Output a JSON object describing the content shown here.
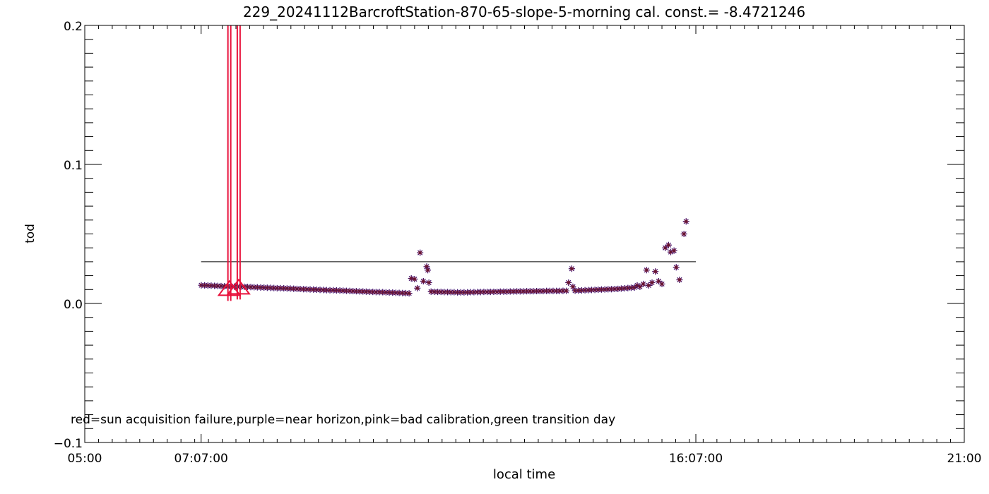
{
  "chart_data": {
    "type": "scatter",
    "title": "229_20241112BarcroftStation-870-65-slope-5-morning cal. const.= -8.4721246",
    "xlabel": "local time",
    "ylabel": "tod",
    "x_unit": "hours",
    "xlim": [
      5.0,
      21.0
    ],
    "ylim": [
      -0.1,
      0.2
    ],
    "x_ticks": [
      {
        "value": 5.0,
        "label": "05:00"
      },
      {
        "value": 7.1167,
        "label": "07:07:00"
      },
      {
        "value": 16.1167,
        "label": "16:07:00"
      },
      {
        "value": 21.0,
        "label": "21:00"
      }
    ],
    "y_ticks": [
      {
        "value": -0.1,
        "label": "-0.1"
      },
      {
        "value": 0.0,
        "label": "0.0"
      },
      {
        "value": 0.1,
        "label": "0.1"
      },
      {
        "value": 0.2,
        "label": "0.2"
      }
    ],
    "x_minor_step": 0.25,
    "y_minor_step": 0.01,
    "grid": false,
    "annotation": "red=sun acquisition failure,purple=near horizon,pink=bad calibration,green transition day",
    "threshold_line": {
      "y": 0.03,
      "x_start": 7.1167,
      "x_end": 16.1167,
      "color": "#000000"
    },
    "colors": {
      "all": "#000000",
      "purple": "#8a2be2",
      "pink": "#e0306a",
      "red": "#e8103a"
    },
    "red_failures": [
      {
        "x": 7.63,
        "y": 0.011
      },
      {
        "x": 7.8,
        "y": 0.012
      }
    ],
    "series": [
      {
        "marker": "asterisk",
        "color": "#000000",
        "points": [
          [
            7.12,
            0.0131
          ],
          [
            7.18,
            0.013
          ],
          [
            7.24,
            0.0129
          ],
          [
            7.3,
            0.0128
          ],
          [
            7.36,
            0.0127
          ],
          [
            7.42,
            0.0126
          ],
          [
            7.48,
            0.0125
          ],
          [
            7.54,
            0.0124
          ],
          [
            7.6,
            0.0123
          ],
          [
            7.66,
            0.0122
          ],
          [
            7.72,
            0.0121
          ],
          [
            7.78,
            0.0121
          ],
          [
            7.84,
            0.012
          ],
          [
            7.9,
            0.012
          ],
          [
            7.96,
            0.0119
          ],
          [
            8.02,
            0.0118
          ],
          [
            8.08,
            0.0117
          ],
          [
            8.14,
            0.0116
          ],
          [
            8.2,
            0.0115
          ],
          [
            8.26,
            0.0114
          ],
          [
            8.32,
            0.0113
          ],
          [
            8.38,
            0.0112
          ],
          [
            8.44,
            0.0111
          ],
          [
            8.5,
            0.011
          ],
          [
            8.56,
            0.011
          ],
          [
            8.62,
            0.0109
          ],
          [
            8.68,
            0.0108
          ],
          [
            8.74,
            0.0107
          ],
          [
            8.8,
            0.0106
          ],
          [
            8.86,
            0.0105
          ],
          [
            8.92,
            0.0104
          ],
          [
            8.98,
            0.0103
          ],
          [
            9.04,
            0.0102
          ],
          [
            9.1,
            0.0101
          ],
          [
            9.16,
            0.01
          ],
          [
            9.22,
            0.0099
          ],
          [
            9.28,
            0.0098
          ],
          [
            9.34,
            0.0097
          ],
          [
            9.4,
            0.0096
          ],
          [
            9.46,
            0.0095
          ],
          [
            9.52,
            0.0095
          ],
          [
            9.58,
            0.0094
          ],
          [
            9.64,
            0.0093
          ],
          [
            9.7,
            0.0092
          ],
          [
            9.76,
            0.0091
          ],
          [
            9.82,
            0.009
          ],
          [
            9.88,
            0.0089
          ],
          [
            9.94,
            0.0088
          ],
          [
            10.0,
            0.0087
          ],
          [
            10.06,
            0.0086
          ],
          [
            10.12,
            0.0085
          ],
          [
            10.18,
            0.0084
          ],
          [
            10.24,
            0.0083
          ],
          [
            10.3,
            0.0082
          ],
          [
            10.36,
            0.0082
          ],
          [
            10.42,
            0.0081
          ],
          [
            10.48,
            0.008
          ],
          [
            10.54,
            0.0079
          ],
          [
            10.6,
            0.0078
          ],
          [
            10.66,
            0.0077
          ],
          [
            10.72,
            0.0076
          ],
          [
            10.78,
            0.0075
          ],
          [
            10.84,
            0.0074
          ],
          [
            10.9,
            0.0073
          ],
          [
            10.94,
            0.018
          ],
          [
            11.0,
            0.0175
          ],
          [
            11.05,
            0.011
          ],
          [
            11.1,
            0.0365
          ],
          [
            11.16,
            0.016
          ],
          [
            11.22,
            0.0265
          ],
          [
            11.24,
            0.024
          ],
          [
            11.26,
            0.015
          ],
          [
            11.3,
            0.0085
          ],
          [
            11.36,
            0.0084
          ],
          [
            11.42,
            0.0083
          ],
          [
            11.48,
            0.0083
          ],
          [
            11.54,
            0.0082
          ],
          [
            11.6,
            0.0082
          ],
          [
            11.66,
            0.0081
          ],
          [
            11.72,
            0.0081
          ],
          [
            11.78,
            0.008
          ],
          [
            11.84,
            0.008
          ],
          [
            11.9,
            0.008
          ],
          [
            11.96,
            0.008
          ],
          [
            12.02,
            0.0081
          ],
          [
            12.08,
            0.0081
          ],
          [
            12.14,
            0.0082
          ],
          [
            12.2,
            0.0082
          ],
          [
            12.26,
            0.0083
          ],
          [
            12.32,
            0.0083
          ],
          [
            12.38,
            0.0083
          ],
          [
            12.44,
            0.0084
          ],
          [
            12.5,
            0.0084
          ],
          [
            12.56,
            0.0085
          ],
          [
            12.62,
            0.0085
          ],
          [
            12.68,
            0.0085
          ],
          [
            12.74,
            0.0086
          ],
          [
            12.8,
            0.0086
          ],
          [
            12.86,
            0.0087
          ],
          [
            12.92,
            0.0087
          ],
          [
            12.98,
            0.0087
          ],
          [
            13.04,
            0.0088
          ],
          [
            13.1,
            0.0088
          ],
          [
            13.16,
            0.0088
          ],
          [
            13.22,
            0.0089
          ],
          [
            13.28,
            0.0089
          ],
          [
            13.34,
            0.0089
          ],
          [
            13.4,
            0.009
          ],
          [
            13.46,
            0.009
          ],
          [
            13.52,
            0.009
          ],
          [
            13.58,
            0.009
          ],
          [
            13.64,
            0.009
          ],
          [
            13.7,
            0.0091
          ],
          [
            13.76,
            0.0091
          ],
          [
            13.8,
            0.015
          ],
          [
            13.86,
            0.025
          ],
          [
            13.88,
            0.012
          ],
          [
            13.92,
            0.0092
          ],
          [
            13.98,
            0.0093
          ],
          [
            14.04,
            0.0094
          ],
          [
            14.1,
            0.0095
          ],
          [
            14.16,
            0.0096
          ],
          [
            14.22,
            0.0097
          ],
          [
            14.28,
            0.0098
          ],
          [
            14.34,
            0.0099
          ],
          [
            14.4,
            0.01
          ],
          [
            14.46,
            0.0101
          ],
          [
            14.52,
            0.0102
          ],
          [
            14.58,
            0.0103
          ],
          [
            14.64,
            0.0104
          ],
          [
            14.7,
            0.0105
          ],
          [
            14.76,
            0.0107
          ],
          [
            14.82,
            0.0109
          ],
          [
            14.88,
            0.0111
          ],
          [
            14.94,
            0.0113
          ],
          [
            15.0,
            0.0115
          ],
          [
            15.05,
            0.013
          ],
          [
            15.1,
            0.012
          ],
          [
            15.16,
            0.014
          ],
          [
            15.22,
            0.024
          ],
          [
            15.26,
            0.013
          ],
          [
            15.32,
            0.015
          ],
          [
            15.38,
            0.023
          ],
          [
            15.44,
            0.016
          ],
          [
            15.5,
            0.014
          ],
          [
            15.56,
            0.04
          ],
          [
            15.62,
            0.042
          ],
          [
            15.66,
            0.037
          ],
          [
            15.72,
            0.038
          ],
          [
            15.76,
            0.026
          ],
          [
            15.82,
            0.017
          ],
          [
            15.9,
            0.05
          ],
          [
            15.94,
            0.059
          ]
        ]
      }
    ]
  }
}
